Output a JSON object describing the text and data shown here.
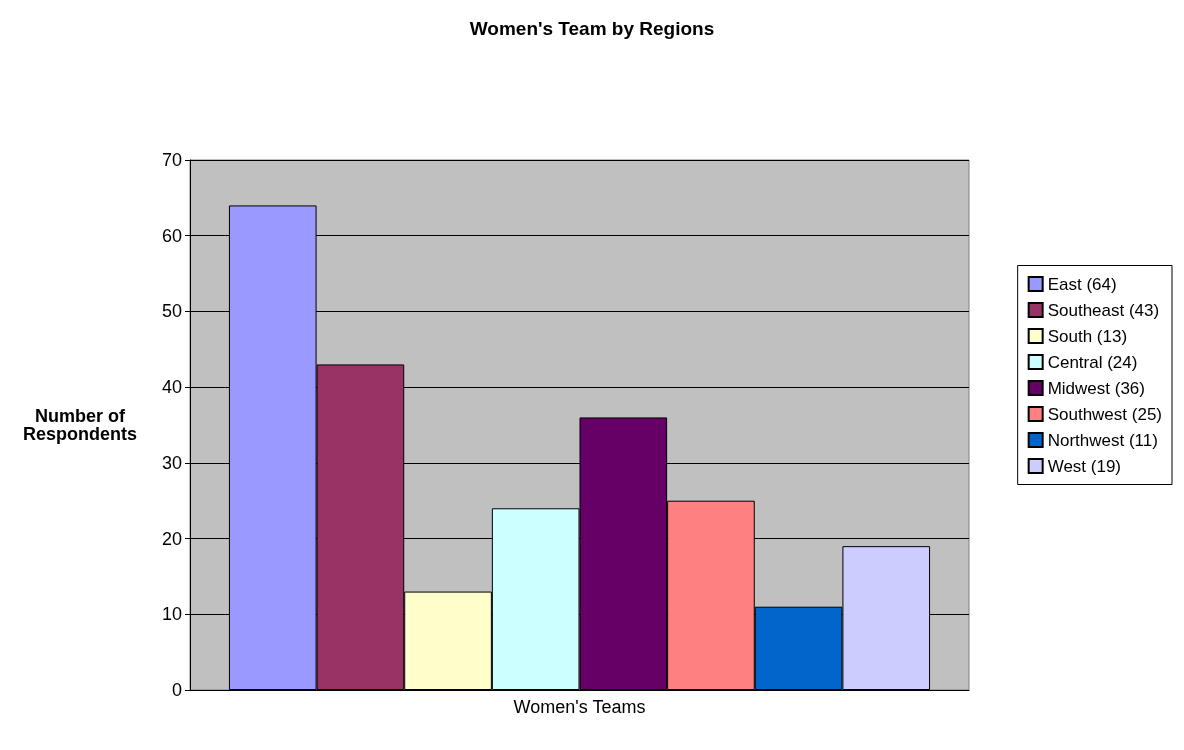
{
  "chart_data": {
    "type": "bar",
    "title": "Women's Team by Regions",
    "ylabel": "Number of\nRespondents",
    "categories": [
      "Women's Teams"
    ],
    "series": [
      {
        "name": "East (64)",
        "color": "#9999ff",
        "values": [
          64
        ]
      },
      {
        "name": "Southeast (43)",
        "color": "#993366",
        "values": [
          43
        ]
      },
      {
        "name": "South (13)",
        "color": "#ffffcc",
        "values": [
          13
        ]
      },
      {
        "name": "Central (24)",
        "color": "#ccffff",
        "values": [
          24
        ]
      },
      {
        "name": "Midwest (36)",
        "color": "#660066",
        "values": [
          36
        ]
      },
      {
        "name": "Southwest (25)",
        "color": "#ff8080",
        "values": [
          25
        ]
      },
      {
        "name": "Northwest (11)",
        "color": "#0066cc",
        "values": [
          11
        ]
      },
      {
        "name": "West (19)",
        "color": "#ccccff",
        "values": [
          19
        ]
      }
    ],
    "ylim": [
      0,
      70
    ],
    "yticks": [
      0,
      10,
      20,
      30,
      40,
      50,
      60,
      70
    ],
    "grid": "y",
    "legend": "right"
  }
}
